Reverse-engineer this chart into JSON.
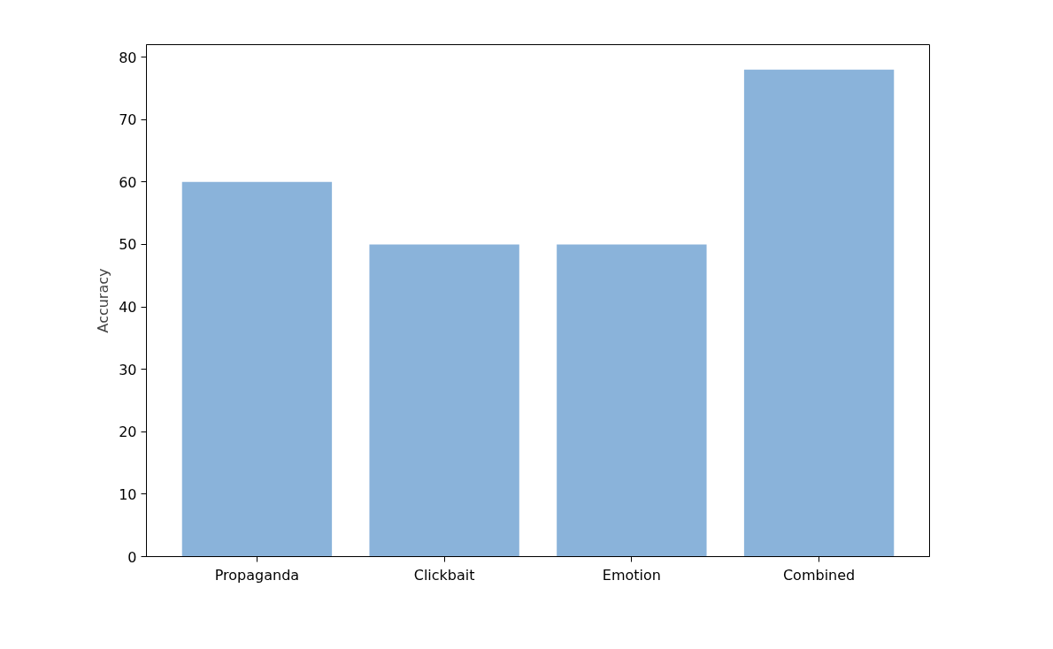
{
  "chart_data": {
    "type": "bar",
    "ylabel": "Accuracy",
    "categories": [
      "Propaganda",
      "Clickbait",
      "Emotion",
      "Combined"
    ],
    "values": [
      60,
      50,
      50,
      78
    ],
    "color": "#8ab3da",
    "ylim": [
      0,
      82
    ],
    "yticks": [
      0,
      10,
      20,
      30,
      40,
      50,
      60,
      70,
      80
    ],
    "grid": false
  }
}
